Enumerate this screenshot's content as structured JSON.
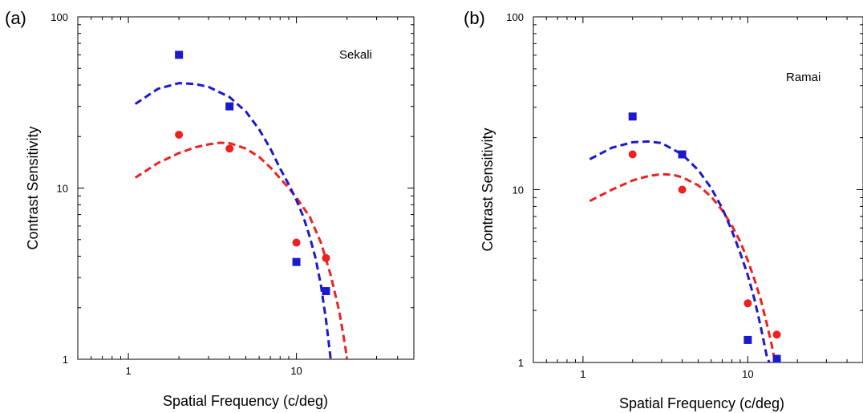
{
  "chart_data": [
    {
      "type": "scatter",
      "panel_label": "(a)",
      "annotation": "Sekali",
      "xlabel": "Spatial Frequency (c/deg)",
      "ylabel": "Contrast Sensitivity",
      "xscale": "log",
      "yscale": "log",
      "xlim": [
        0.5,
        50
      ],
      "ylim": [
        1,
        100
      ],
      "x_ticklabels": [
        "1",
        "10"
      ],
      "y_ticklabels": [
        "1",
        "10",
        "100"
      ],
      "grid": false,
      "colors": {
        "blue": "#1a1acc",
        "red": "#ee2020"
      },
      "series": [
        {
          "color_key": "blue",
          "marker": "square",
          "points": [
            [
              2,
              60
            ],
            [
              4,
              30
            ],
            [
              10,
              3.7
            ],
            [
              15,
              2.5
            ]
          ],
          "fit": [
            [
              1.1,
              31
            ],
            [
              1.5,
              38
            ],
            [
              2,
              41
            ],
            [
              2.5,
              40.5
            ],
            [
              3,
              39
            ],
            [
              4,
              34
            ],
            [
              5,
              28
            ],
            [
              6,
              22
            ],
            [
              7,
              17
            ],
            [
              8,
              13
            ],
            [
              9,
              10.5
            ],
            [
              10,
              8.5
            ],
            [
              11,
              6.8
            ],
            [
              12,
              5.2
            ],
            [
              13,
              3.9
            ],
            [
              14,
              2.7
            ],
            [
              15,
              1.7
            ],
            [
              16,
              1.0
            ]
          ]
        },
        {
          "color_key": "red",
          "marker": "circle",
          "points": [
            [
              2,
              20.5
            ],
            [
              4,
              17
            ],
            [
              10,
              4.8
            ],
            [
              15,
              3.9
            ]
          ],
          "fit": [
            [
              1.1,
              11.5
            ],
            [
              1.5,
              14
            ],
            [
              2,
              16
            ],
            [
              2.5,
              17.3
            ],
            [
              3,
              18
            ],
            [
              3.5,
              18.4
            ],
            [
              4,
              18.3
            ],
            [
              5,
              17
            ],
            [
              6,
              15.2
            ],
            [
              7,
              13.2
            ],
            [
              8,
              11.4
            ],
            [
              9,
              10
            ],
            [
              10,
              8.8
            ],
            [
              12,
              6.8
            ],
            [
              14,
              4.8
            ],
            [
              16,
              3.1
            ],
            [
              18,
              1.9
            ],
            [
              19.5,
              1.2
            ],
            [
              20,
              1.0
            ]
          ]
        }
      ]
    },
    {
      "type": "scatter",
      "panel_label": "(b)",
      "annotation": "Ramai",
      "xlabel": "Spatial Frequency (c/deg)",
      "ylabel": "Contrast Sensitivity",
      "xscale": "log",
      "yscale": "log",
      "xlim": [
        0.5,
        50
      ],
      "ylim": [
        1,
        100
      ],
      "x_ticklabels": [
        "1",
        "10"
      ],
      "y_ticklabels": [
        "1",
        "10",
        "100"
      ],
      "grid": false,
      "colors": {
        "blue": "#1a1acc",
        "red": "#ee2020"
      },
      "series": [
        {
          "color_key": "blue",
          "marker": "square",
          "points": [
            [
              2,
              26.5
            ],
            [
              4,
              16
            ],
            [
              10,
              1.35
            ],
            [
              15,
              1.05
            ]
          ],
          "fit": [
            [
              1.1,
              15
            ],
            [
              1.5,
              17.5
            ],
            [
              2,
              18.8
            ],
            [
              2.5,
              19
            ],
            [
              3,
              18.6
            ],
            [
              4,
              16
            ],
            [
              5,
              13
            ],
            [
              6,
              10.2
            ],
            [
              7,
              7.8
            ],
            [
              8,
              5.8
            ],
            [
              9,
              4.3
            ],
            [
              10,
              3.2
            ],
            [
              11,
              2.3
            ],
            [
              12,
              1.6
            ],
            [
              13,
              1.1
            ],
            [
              13.5,
              1.0
            ]
          ]
        },
        {
          "color_key": "red",
          "marker": "circle",
          "points": [
            [
              2,
              16
            ],
            [
              4,
              10
            ],
            [
              10,
              2.2
            ],
            [
              15,
              1.45
            ]
          ],
          "fit": [
            [
              1.1,
              8.6
            ],
            [
              1.5,
              10
            ],
            [
              2,
              11.3
            ],
            [
              2.5,
              12
            ],
            [
              3,
              12.3
            ],
            [
              3.5,
              12.2
            ],
            [
              4,
              11.8
            ],
            [
              5,
              10.6
            ],
            [
              6,
              9.1
            ],
            [
              7,
              7.6
            ],
            [
              8,
              6.2
            ],
            [
              9,
              5
            ],
            [
              10,
              3.9
            ],
            [
              11,
              3
            ],
            [
              12,
              2.3
            ],
            [
              13,
              1.7
            ],
            [
              14,
              1.25
            ],
            [
              14.5,
              1.05
            ]
          ]
        }
      ]
    }
  ]
}
